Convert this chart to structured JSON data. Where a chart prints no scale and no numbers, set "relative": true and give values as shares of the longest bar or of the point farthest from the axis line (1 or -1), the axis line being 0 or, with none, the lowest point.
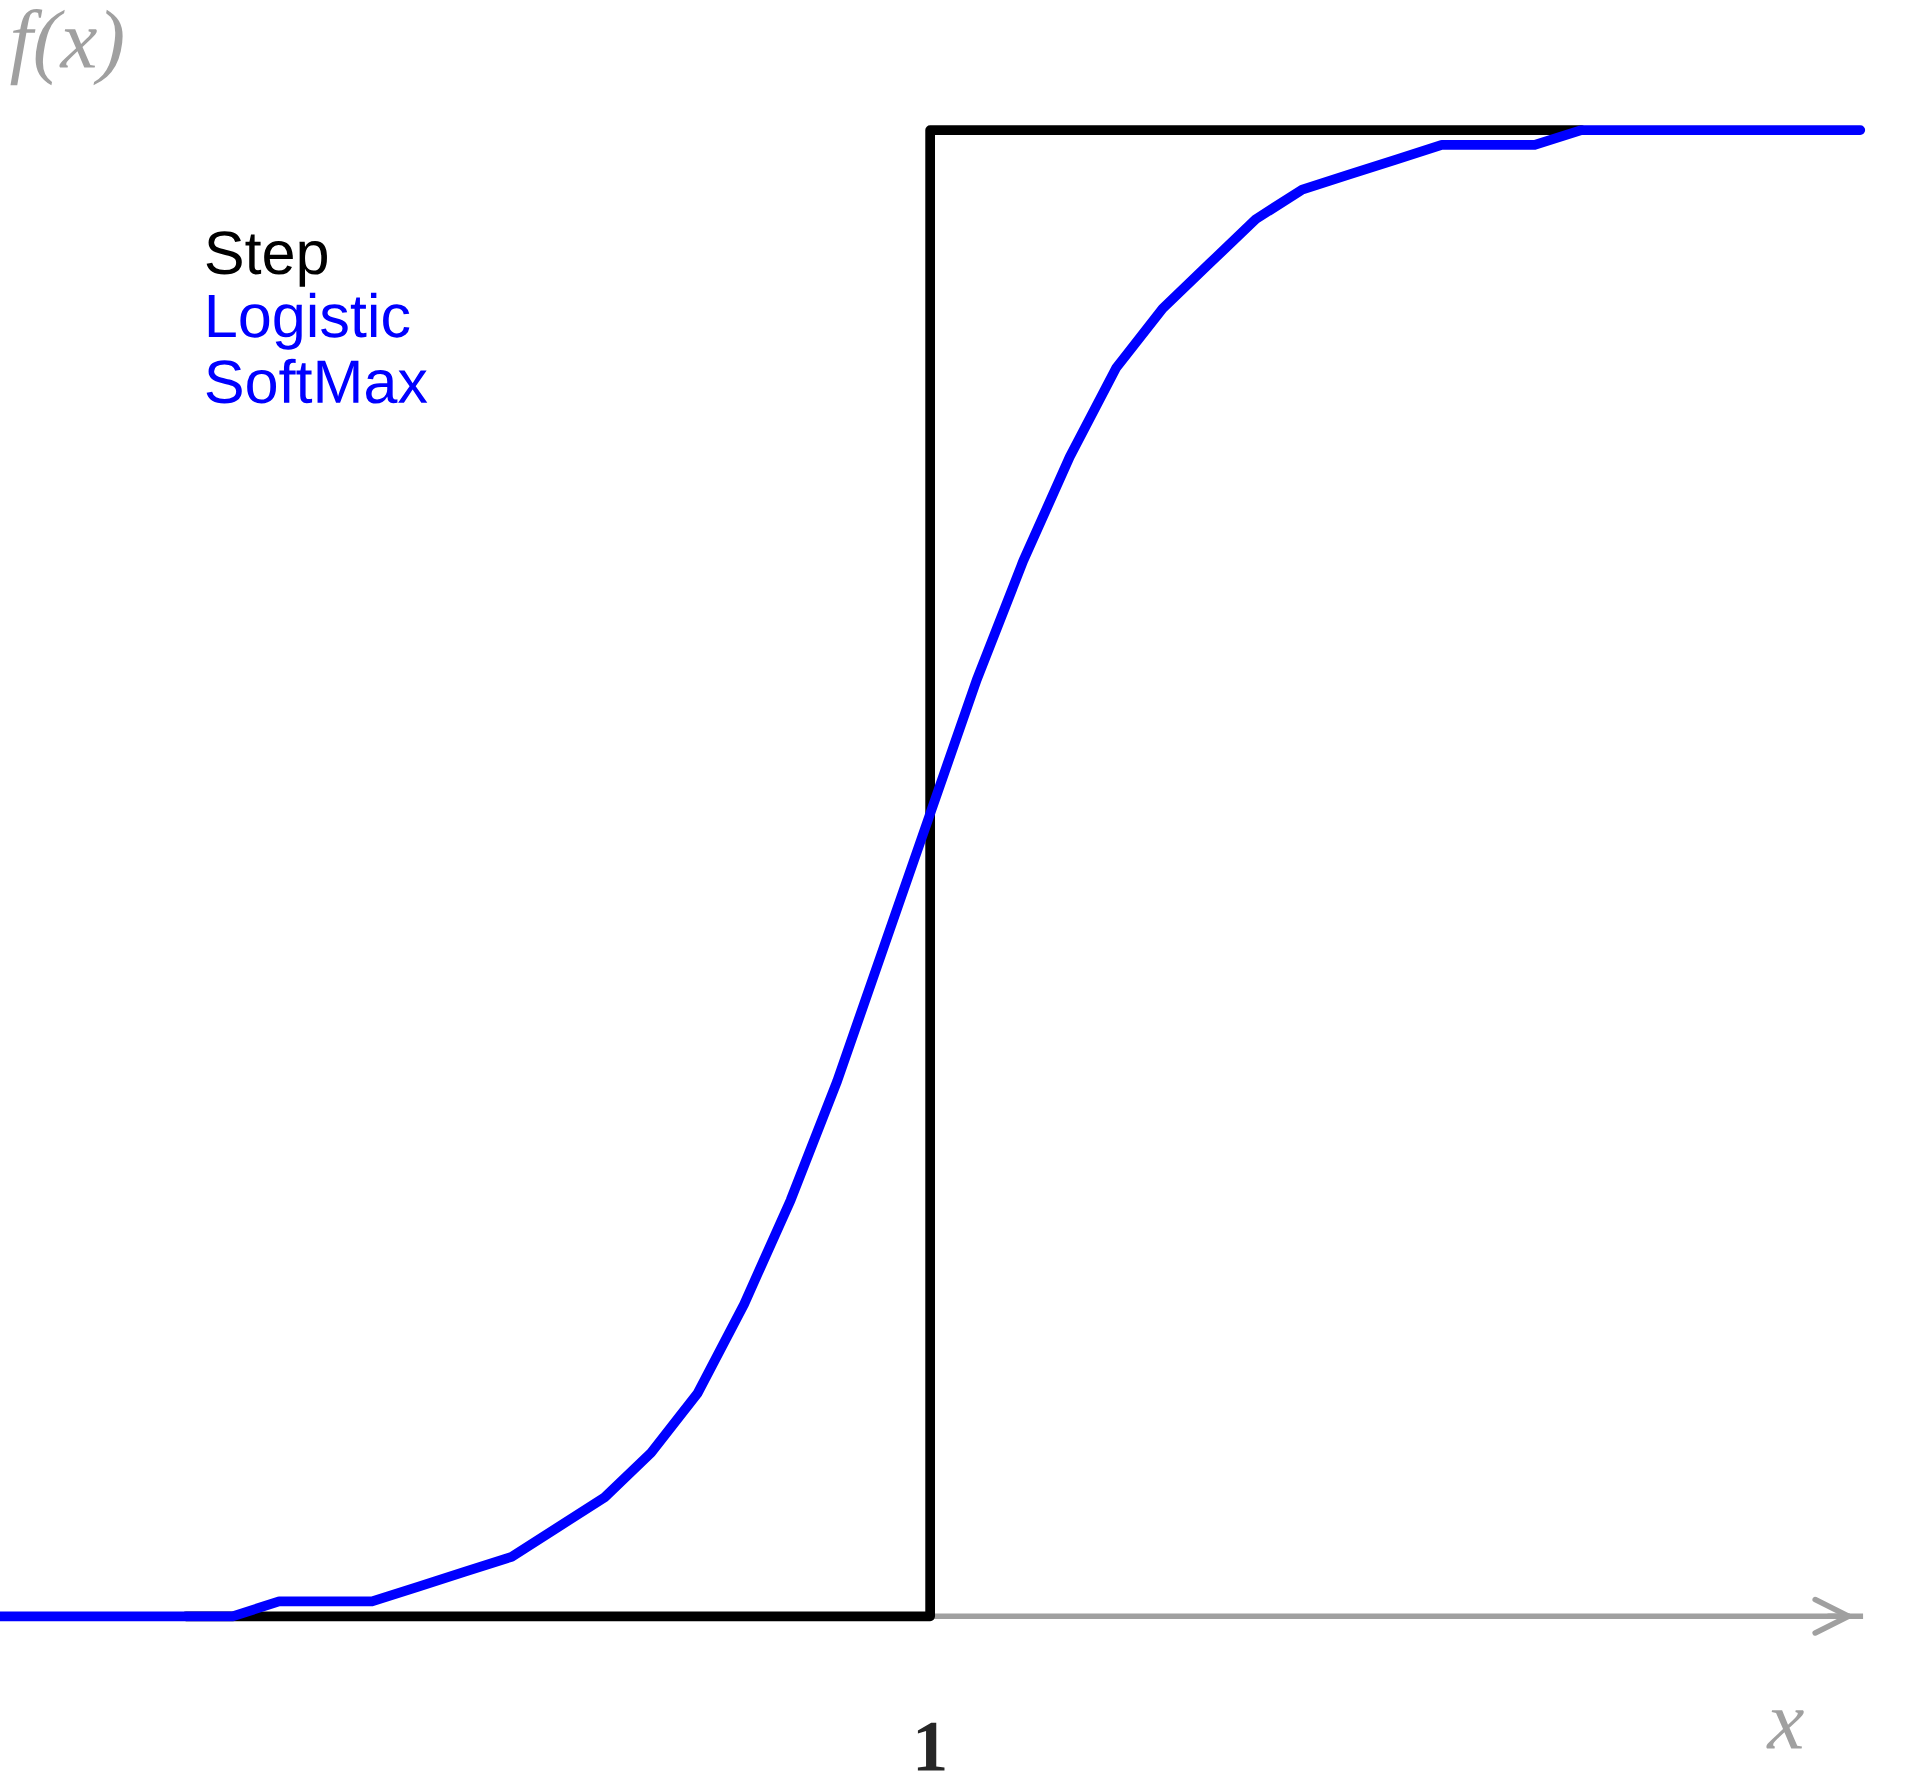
{
  "chart_data": {
    "type": "line",
    "xlabel": "x",
    "ylabel": "f(x)",
    "relative": true,
    "legend": "top left",
    "annotations": [
      "1"
    ],
    "categories": [
      null,
      null,
      null,
      null,
      null,
      null,
      null,
      null,
      null,
      null,
      null,
      null,
      null,
      null,
      null,
      null,
      null,
      null,
      null,
      null,
      null,
      null,
      null,
      null,
      null,
      null,
      null,
      null,
      null,
      null,
      null,
      null,
      null,
      null,
      null,
      null,
      null,
      null,
      null,
      null,
      null
    ],
    "series": [
      {
        "name": "Step",
        "type": "step",
        "color": "#000000",
        "values": [
          null,
          null,
          null,
          null,
          0,
          0,
          0,
          0,
          0,
          0,
          0,
          0,
          0,
          0,
          0,
          0,
          0,
          0,
          0,
          0,
          1,
          1,
          1,
          1,
          1,
          1,
          1,
          1,
          1,
          1,
          1,
          1,
          1,
          1,
          1,
          null,
          null,
          null,
          null,
          null,
          null
        ]
      },
      {
        "name": "Logistic\nSoftMax",
        "color": "#0000ff",
        "values": [
          0,
          0,
          0,
          0,
          0,
          0,
          0.01,
          0.01,
          0.01,
          0.02,
          0.03,
          0.04,
          0.06,
          0.08,
          0.11,
          0.15,
          0.21,
          0.28,
          0.36,
          0.45,
          0.54,
          0.63,
          0.71,
          0.78,
          0.84,
          0.88,
          0.91,
          0.94,
          0.96,
          0.97,
          0.98,
          0.99,
          0.99,
          0.99,
          1,
          1,
          1,
          1,
          1,
          1,
          1
        ]
      }
    ]
  }
}
